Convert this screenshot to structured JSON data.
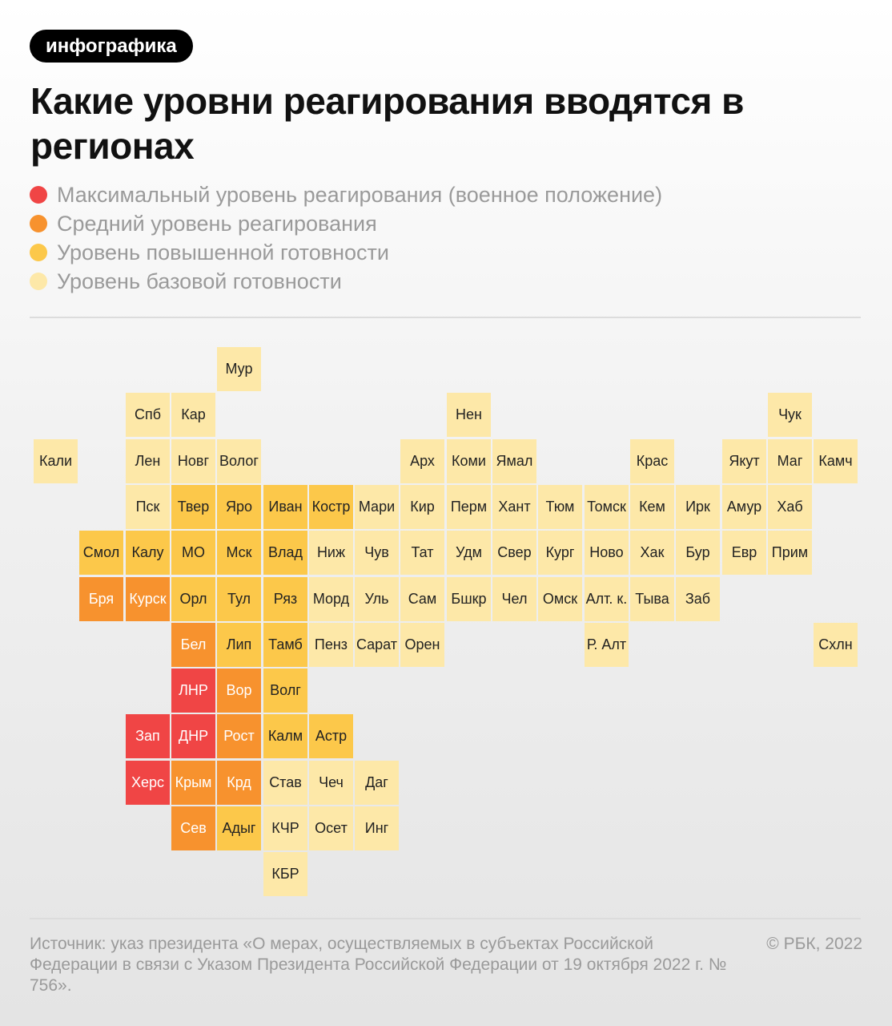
{
  "tag": "инфографика",
  "title": "Какие уровни реагирования вводятся в регионах",
  "legend": [
    {
      "key": "max",
      "label": "Максимальный уровень реагирования (военное положение)",
      "color": "#f04545"
    },
    {
      "key": "mid",
      "label": "Средний уровень реагирования",
      "color": "#f7922e"
    },
    {
      "key": "high",
      "label": "Уровень повышенной готовности",
      "color": "#fcc84a"
    },
    {
      "key": "base",
      "label": "Уровень базовой готовности",
      "color": "#fde8a8"
    }
  ],
  "level_colors": {
    "max": "#f04545",
    "mid": "#f7922e",
    "high": "#fcc84a",
    "base": "#fde8a8"
  },
  "map": {
    "regions": [
      {
        "row": 0,
        "col": 4,
        "label": "Мур",
        "level": "base"
      },
      {
        "row": 1,
        "col": 2,
        "label": "Спб",
        "level": "base"
      },
      {
        "row": 1,
        "col": 3,
        "label": "Кар",
        "level": "base"
      },
      {
        "row": 1,
        "col": 9,
        "label": "Нен",
        "level": "base"
      },
      {
        "row": 1,
        "col": 16,
        "label": "Чук",
        "level": "base"
      },
      {
        "row": 2,
        "col": 0,
        "label": "Кали",
        "level": "base"
      },
      {
        "row": 2,
        "col": 2,
        "label": "Лен",
        "level": "base"
      },
      {
        "row": 2,
        "col": 3,
        "label": "Новг",
        "level": "base"
      },
      {
        "row": 2,
        "col": 4,
        "label": "Волог",
        "level": "base"
      },
      {
        "row": 2,
        "col": 8,
        "label": "Арх",
        "level": "base"
      },
      {
        "row": 2,
        "col": 9,
        "label": "Коми",
        "level": "base"
      },
      {
        "row": 2,
        "col": 10,
        "label": "Ямал",
        "level": "base"
      },
      {
        "row": 2,
        "col": 13,
        "label": "Крас",
        "level": "base"
      },
      {
        "row": 2,
        "col": 15,
        "label": "Якут",
        "level": "base"
      },
      {
        "row": 2,
        "col": 16,
        "label": "Маг",
        "level": "base"
      },
      {
        "row": 2,
        "col": 17,
        "label": "Камч",
        "level": "base"
      },
      {
        "row": 3,
        "col": 2,
        "label": "Пск",
        "level": "base"
      },
      {
        "row": 3,
        "col": 3,
        "label": "Твер",
        "level": "high"
      },
      {
        "row": 3,
        "col": 4,
        "label": "Яро",
        "level": "high"
      },
      {
        "row": 3,
        "col": 5,
        "label": "Иван",
        "level": "high"
      },
      {
        "row": 3,
        "col": 6,
        "label": "Костр",
        "level": "high"
      },
      {
        "row": 3,
        "col": 7,
        "label": "Мари",
        "level": "base"
      },
      {
        "row": 3,
        "col": 8,
        "label": "Кир",
        "level": "base"
      },
      {
        "row": 3,
        "col": 9,
        "label": "Перм",
        "level": "base"
      },
      {
        "row": 3,
        "col": 10,
        "label": "Хант",
        "level": "base"
      },
      {
        "row": 3,
        "col": 11,
        "label": "Тюм",
        "level": "base"
      },
      {
        "row": 3,
        "col": 12,
        "label": "Томск",
        "level": "base"
      },
      {
        "row": 3,
        "col": 13,
        "label": "Кем",
        "level": "base"
      },
      {
        "row": 3,
        "col": 14,
        "label": "Ирк",
        "level": "base"
      },
      {
        "row": 3,
        "col": 15,
        "label": "Амур",
        "level": "base"
      },
      {
        "row": 3,
        "col": 16,
        "label": "Хаб",
        "level": "base"
      },
      {
        "row": 4,
        "col": 1,
        "label": "Смол",
        "level": "high"
      },
      {
        "row": 4,
        "col": 2,
        "label": "Калу",
        "level": "high"
      },
      {
        "row": 4,
        "col": 3,
        "label": "МО",
        "level": "high"
      },
      {
        "row": 4,
        "col": 4,
        "label": "Мск",
        "level": "high"
      },
      {
        "row": 4,
        "col": 5,
        "label": "Влад",
        "level": "high"
      },
      {
        "row": 4,
        "col": 6,
        "label": "Ниж",
        "level": "base"
      },
      {
        "row": 4,
        "col": 7,
        "label": "Чув",
        "level": "base"
      },
      {
        "row": 4,
        "col": 8,
        "label": "Тат",
        "level": "base"
      },
      {
        "row": 4,
        "col": 9,
        "label": "Удм",
        "level": "base"
      },
      {
        "row": 4,
        "col": 10,
        "label": "Свер",
        "level": "base"
      },
      {
        "row": 4,
        "col": 11,
        "label": "Кург",
        "level": "base"
      },
      {
        "row": 4,
        "col": 12,
        "label": "Ново",
        "level": "base"
      },
      {
        "row": 4,
        "col": 13,
        "label": "Хак",
        "level": "base"
      },
      {
        "row": 4,
        "col": 14,
        "label": "Бур",
        "level": "base"
      },
      {
        "row": 4,
        "col": 15,
        "label": "Евр",
        "level": "base"
      },
      {
        "row": 4,
        "col": 16,
        "label": "Прим",
        "level": "base"
      },
      {
        "row": 5,
        "col": 1,
        "label": "Бря",
        "level": "mid"
      },
      {
        "row": 5,
        "col": 2,
        "label": "Курск",
        "level": "mid"
      },
      {
        "row": 5,
        "col": 3,
        "label": "Орл",
        "level": "high"
      },
      {
        "row": 5,
        "col": 4,
        "label": "Тул",
        "level": "high"
      },
      {
        "row": 5,
        "col": 5,
        "label": "Ряз",
        "level": "high"
      },
      {
        "row": 5,
        "col": 6,
        "label": "Морд",
        "level": "base"
      },
      {
        "row": 5,
        "col": 7,
        "label": "Уль",
        "level": "base"
      },
      {
        "row": 5,
        "col": 8,
        "label": "Сам",
        "level": "base"
      },
      {
        "row": 5,
        "col": 9,
        "label": "Бшкр",
        "level": "base"
      },
      {
        "row": 5,
        "col": 10,
        "label": "Чел",
        "level": "base"
      },
      {
        "row": 5,
        "col": 11,
        "label": "Омск",
        "level": "base"
      },
      {
        "row": 5,
        "col": 12,
        "label": "Алт. к.",
        "level": "base"
      },
      {
        "row": 5,
        "col": 13,
        "label": "Тыва",
        "level": "base"
      },
      {
        "row": 5,
        "col": 14,
        "label": "Заб",
        "level": "base"
      },
      {
        "row": 6,
        "col": 3,
        "label": "Бел",
        "level": "mid"
      },
      {
        "row": 6,
        "col": 4,
        "label": "Лип",
        "level": "high"
      },
      {
        "row": 6,
        "col": 5,
        "label": "Тамб",
        "level": "high"
      },
      {
        "row": 6,
        "col": 6,
        "label": "Пенз",
        "level": "base"
      },
      {
        "row": 6,
        "col": 7,
        "label": "Сарат",
        "level": "base"
      },
      {
        "row": 6,
        "col": 8,
        "label": "Орен",
        "level": "base"
      },
      {
        "row": 6,
        "col": 12,
        "label": "Р. Алт",
        "level": "base"
      },
      {
        "row": 6,
        "col": 17,
        "label": "Схлн",
        "level": "base"
      },
      {
        "row": 7,
        "col": 3,
        "label": "ЛНР",
        "level": "max"
      },
      {
        "row": 7,
        "col": 4,
        "label": "Вор",
        "level": "mid"
      },
      {
        "row": 7,
        "col": 5,
        "label": "Волг",
        "level": "high"
      },
      {
        "row": 8,
        "col": 2,
        "label": "Зап",
        "level": "max"
      },
      {
        "row": 8,
        "col": 3,
        "label": "ДНР",
        "level": "max"
      },
      {
        "row": 8,
        "col": 4,
        "label": "Рост",
        "level": "mid"
      },
      {
        "row": 8,
        "col": 5,
        "label": "Калм",
        "level": "high"
      },
      {
        "row": 8,
        "col": 6,
        "label": "Астр",
        "level": "high"
      },
      {
        "row": 9,
        "col": 2,
        "label": "Херс",
        "level": "max"
      },
      {
        "row": 9,
        "col": 3,
        "label": "Крым",
        "level": "mid"
      },
      {
        "row": 9,
        "col": 4,
        "label": "Крд",
        "level": "mid"
      },
      {
        "row": 9,
        "col": 5,
        "label": "Став",
        "level": "base"
      },
      {
        "row": 9,
        "col": 6,
        "label": "Чеч",
        "level": "base"
      },
      {
        "row": 9,
        "col": 7,
        "label": "Даг",
        "level": "base"
      },
      {
        "row": 10,
        "col": 3,
        "label": "Сев",
        "level": "mid"
      },
      {
        "row": 10,
        "col": 4,
        "label": "Адыг",
        "level": "high"
      },
      {
        "row": 10,
        "col": 5,
        "label": "КЧР",
        "level": "base"
      },
      {
        "row": 10,
        "col": 6,
        "label": "Осет",
        "level": "base"
      },
      {
        "row": 10,
        "col": 7,
        "label": "Инг",
        "level": "base"
      },
      {
        "row": 11,
        "col": 5,
        "label": "КБР",
        "level": "base"
      }
    ]
  },
  "footer": {
    "source": "Источник: указ президента «О мерах, осуществляемых в субъектах Российской Федерации в связи с Указом Президента Российской Федерации от 19 октября 2022 г. № 756».",
    "copyright": "© РБК, 2022"
  }
}
